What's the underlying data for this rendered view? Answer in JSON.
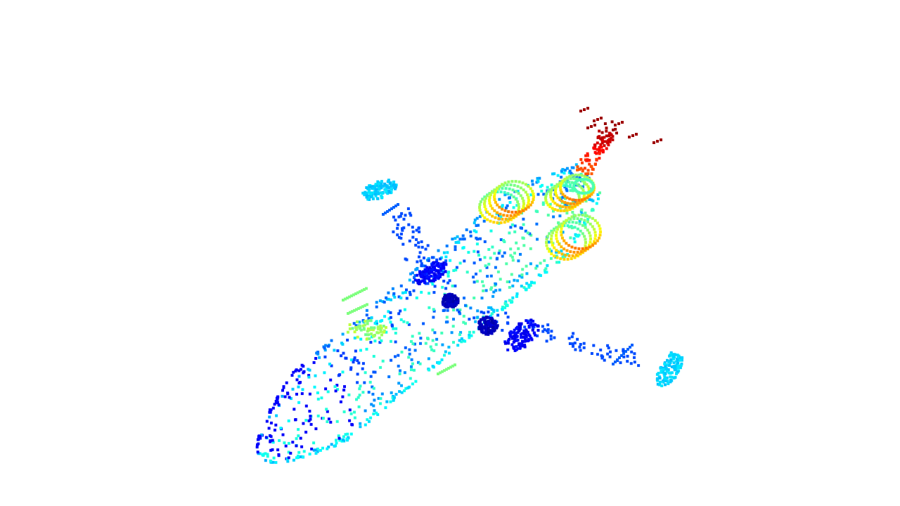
{
  "scene": {
    "subject": "airplane",
    "render_style": "point-cloud",
    "background_color": "#ffffff",
    "colormap": "jet",
    "colormap_stops": [
      "#00008f",
      "#0000ff",
      "#007fff",
      "#00ffff",
      "#7fff7f",
      "#ffff00",
      "#ff7f00",
      "#ff0000",
      "#7f0000"
    ]
  }
}
